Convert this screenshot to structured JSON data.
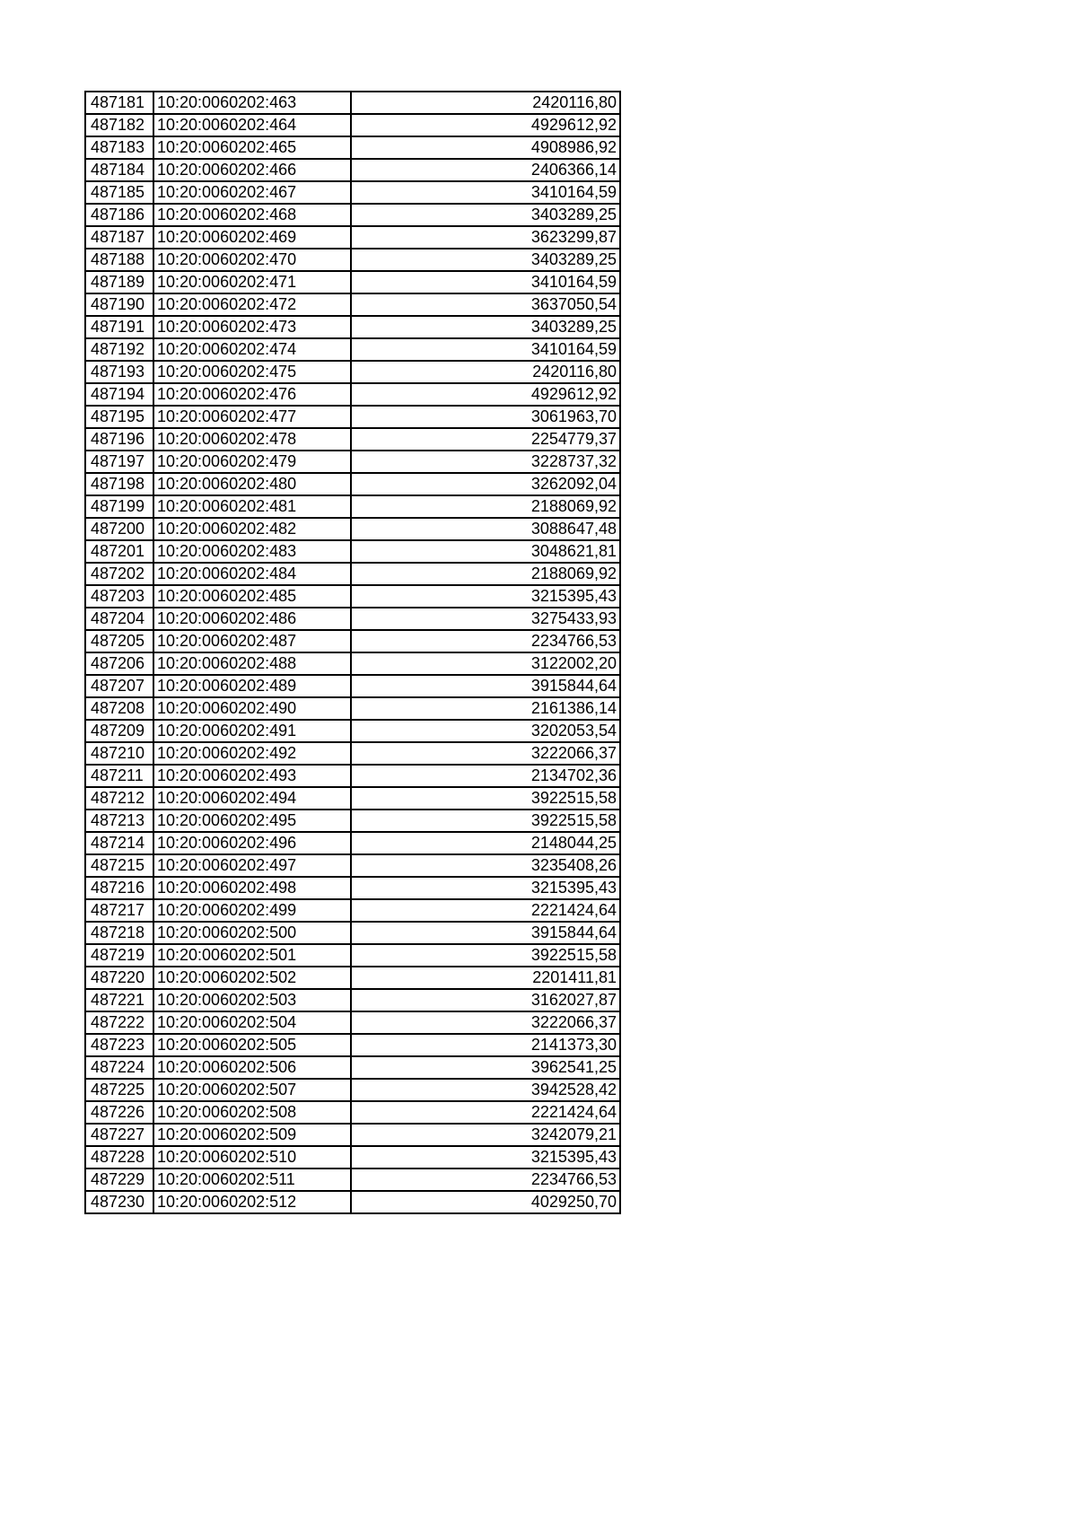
{
  "table": {
    "rows": [
      [
        "487181",
        "10:20:0060202:463",
        "2420116,80"
      ],
      [
        "487182",
        "10:20:0060202:464",
        "4929612,92"
      ],
      [
        "487183",
        "10:20:0060202:465",
        "4908986,92"
      ],
      [
        "487184",
        "10:20:0060202:466",
        "2406366,14"
      ],
      [
        "487185",
        "10:20:0060202:467",
        "3410164,59"
      ],
      [
        "487186",
        "10:20:0060202:468",
        "3403289,25"
      ],
      [
        "487187",
        "10:20:0060202:469",
        "3623299,87"
      ],
      [
        "487188",
        "10:20:0060202:470",
        "3403289,25"
      ],
      [
        "487189",
        "10:20:0060202:471",
        "3410164,59"
      ],
      [
        "487190",
        "10:20:0060202:472",
        "3637050,54"
      ],
      [
        "487191",
        "10:20:0060202:473",
        "3403289,25"
      ],
      [
        "487192",
        "10:20:0060202:474",
        "3410164,59"
      ],
      [
        "487193",
        "10:20:0060202:475",
        "2420116,80"
      ],
      [
        "487194",
        "10:20:0060202:476",
        "4929612,92"
      ],
      [
        "487195",
        "10:20:0060202:477",
        "3061963,70"
      ],
      [
        "487196",
        "10:20:0060202:478",
        "2254779,37"
      ],
      [
        "487197",
        "10:20:0060202:479",
        "3228737,32"
      ],
      [
        "487198",
        "10:20:0060202:480",
        "3262092,04"
      ],
      [
        "487199",
        "10:20:0060202:481",
        "2188069,92"
      ],
      [
        "487200",
        "10:20:0060202:482",
        "3088647,48"
      ],
      [
        "487201",
        "10:20:0060202:483",
        "3048621,81"
      ],
      [
        "487202",
        "10:20:0060202:484",
        "2188069,92"
      ],
      [
        "487203",
        "10:20:0060202:485",
        "3215395,43"
      ],
      [
        "487204",
        "10:20:0060202:486",
        "3275433,93"
      ],
      [
        "487205",
        "10:20:0060202:487",
        "2234766,53"
      ],
      [
        "487206",
        "10:20:0060202:488",
        "3122002,20"
      ],
      [
        "487207",
        "10:20:0060202:489",
        "3915844,64"
      ],
      [
        "487208",
        "10:20:0060202:490",
        "2161386,14"
      ],
      [
        "487209",
        "10:20:0060202:491",
        "3202053,54"
      ],
      [
        "487210",
        "10:20:0060202:492",
        "3222066,37"
      ],
      [
        "487211",
        "10:20:0060202:493",
        "2134702,36"
      ],
      [
        "487212",
        "10:20:0060202:494",
        "3922515,58"
      ],
      [
        "487213",
        "10:20:0060202:495",
        "3922515,58"
      ],
      [
        "487214",
        "10:20:0060202:496",
        "2148044,25"
      ],
      [
        "487215",
        "10:20:0060202:497",
        "3235408,26"
      ],
      [
        "487216",
        "10:20:0060202:498",
        "3215395,43"
      ],
      [
        "487217",
        "10:20:0060202:499",
        "2221424,64"
      ],
      [
        "487218",
        "10:20:0060202:500",
        "3915844,64"
      ],
      [
        "487219",
        "10:20:0060202:501",
        "3922515,58"
      ],
      [
        "487220",
        "10:20:0060202:502",
        "2201411,81"
      ],
      [
        "487221",
        "10:20:0060202:503",
        "3162027,87"
      ],
      [
        "487222",
        "10:20:0060202:504",
        "3222066,37"
      ],
      [
        "487223",
        "10:20:0060202:505",
        "2141373,30"
      ],
      [
        "487224",
        "10:20:0060202:506",
        "3962541,25"
      ],
      [
        "487225",
        "10:20:0060202:507",
        "3942528,42"
      ],
      [
        "487226",
        "10:20:0060202:508",
        "2221424,64"
      ],
      [
        "487227",
        "10:20:0060202:509",
        "3242079,21"
      ],
      [
        "487228",
        "10:20:0060202:510",
        "3215395,43"
      ],
      [
        "487229",
        "10:20:0060202:511",
        "2234766,53"
      ],
      [
        "487230",
        "10:20:0060202:512",
        "4029250,70"
      ]
    ]
  }
}
